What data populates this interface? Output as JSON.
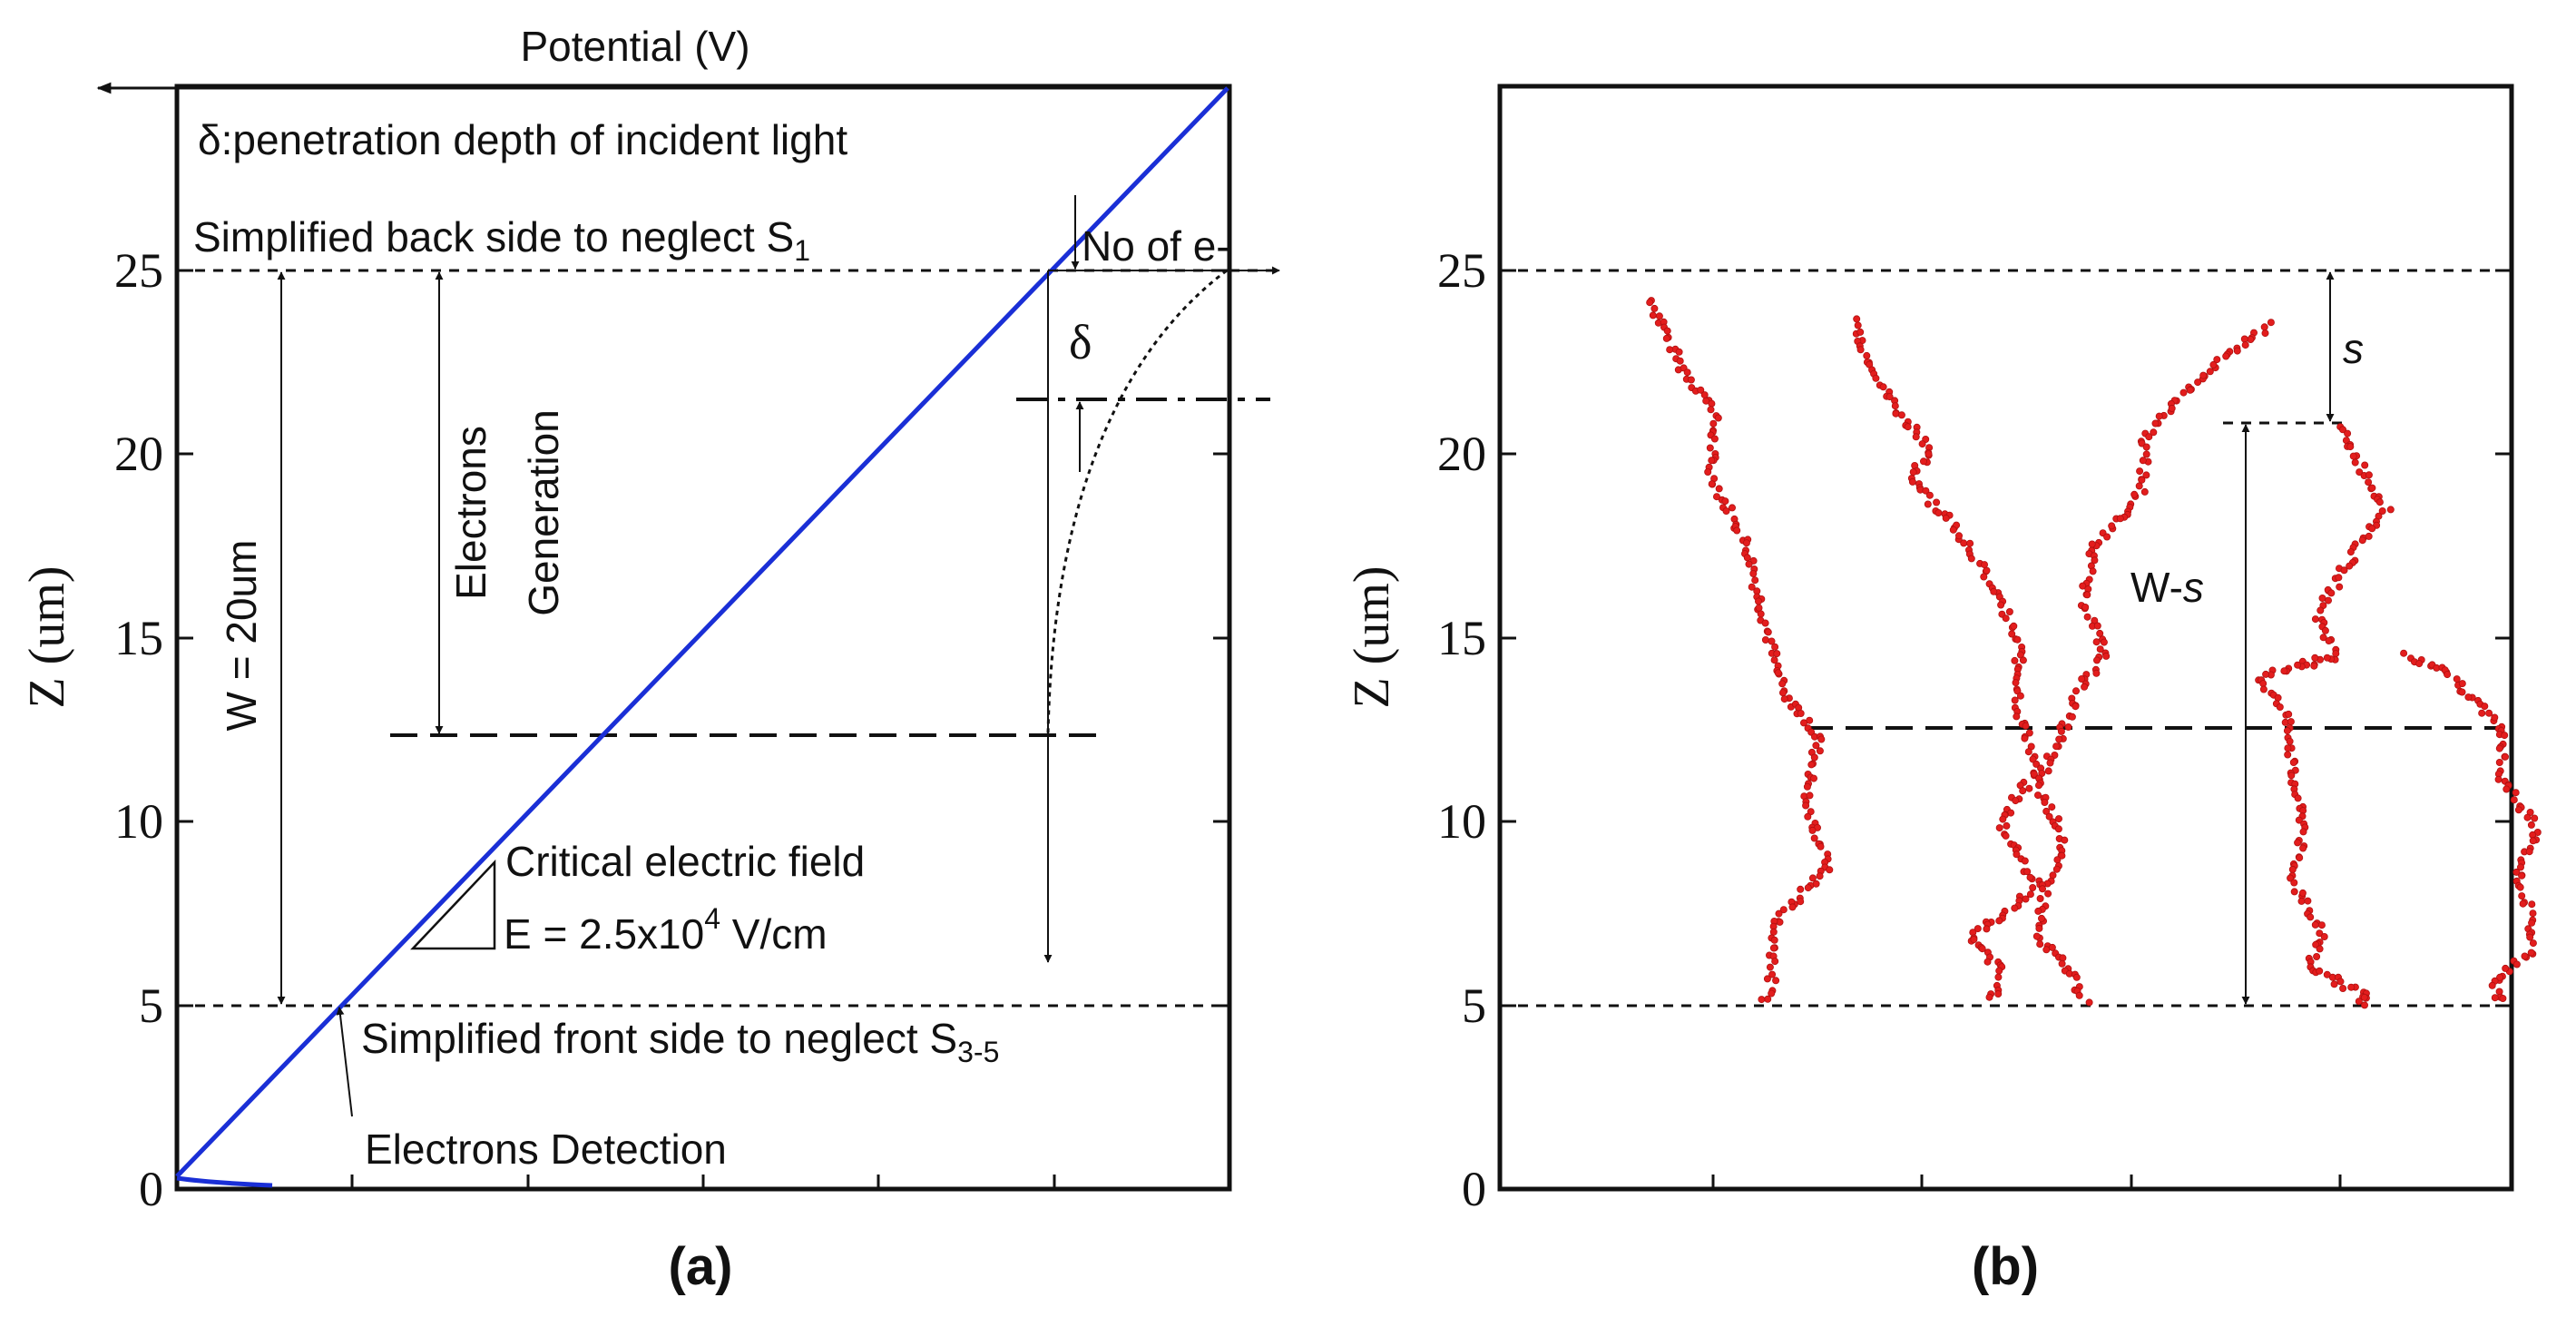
{
  "figure": {
    "panel_a_caption": "(a)",
    "panel_b_caption": "(b)"
  },
  "chart_data": [
    {
      "panel": "a",
      "type": "line",
      "title": "",
      "xlabel": "Potential (V)",
      "ylabel": "Z (um)",
      "x_direction": "right-to-left",
      "ylim": [
        0,
        30
      ],
      "yticks": [
        0,
        5,
        10,
        15,
        20,
        25
      ],
      "ytick_labels": [
        "0",
        "5",
        "10",
        "15",
        "20",
        "25"
      ],
      "grid": false,
      "series": [
        {
          "name": "potential",
          "color": "#1a2fd6",
          "description": "linear potential from Z=0 to Z=30"
        },
        {
          "name": "generation profile",
          "color": "#111111",
          "style": "dotted"
        }
      ],
      "reference_lines": [
        {
          "z": 25,
          "style": "dashed"
        },
        {
          "z": 5,
          "style": "dashed"
        },
        {
          "z": 12.5,
          "style": "long-dashed"
        },
        {
          "z": 21.5,
          "style": "dash-dot"
        }
      ],
      "annotations": {
        "delta_definition": "δ:penetration depth of incident light",
        "back_side": "Simplified back side to neglect S",
        "back_side_sub": "1",
        "front_side": "Simplified front side to neglect S",
        "front_side_sub": "3-5",
        "no_of_e": "No of e-",
        "delta_symbol": "δ",
        "width_label": "W = 20um",
        "generation_line1": "Electrons",
        "generation_line2": "Generation",
        "critical_line1": "Critical electric field",
        "critical_line2_pre": "E = 2.5x10",
        "critical_exp": "4",
        "critical_line2_post": " V/cm",
        "detection": "Electrons Detection"
      }
    },
    {
      "panel": "b",
      "type": "scatter",
      "title": "",
      "xlabel": "",
      "ylabel": "Z (um)",
      "ylim": [
        0,
        30
      ],
      "yticks": [
        0,
        5,
        10,
        15,
        20,
        25
      ],
      "ytick_labels": [
        "0",
        "5",
        "10",
        "15",
        "20",
        "25"
      ],
      "grid": false,
      "point_color": "#e31d1d",
      "reference_lines": [
        {
          "z": 25,
          "style": "dashed"
        },
        {
          "z": 20.8,
          "style": "dashed",
          "partial": true
        },
        {
          "z": 12.5,
          "style": "long-dashed"
        },
        {
          "z": 5,
          "style": "dashed"
        }
      ],
      "annotations": {
        "s_label": "s",
        "w_minus_pre": "W-",
        "w_minus_s": "s"
      },
      "series": [
        {
          "name": "trajectory 1",
          "start_z": 24.2,
          "end_z": 5.0
        },
        {
          "name": "trajectory 2",
          "start_z": 23.6,
          "end_z": 5.0
        },
        {
          "name": "trajectory 3",
          "start_z": 23.5,
          "end_z": 5.0
        },
        {
          "name": "trajectory 4",
          "start_z": 20.8,
          "end_z": 5.0
        },
        {
          "name": "trajectory 5",
          "start_z": 14.5,
          "end_z": 5.0
        }
      ]
    }
  ]
}
